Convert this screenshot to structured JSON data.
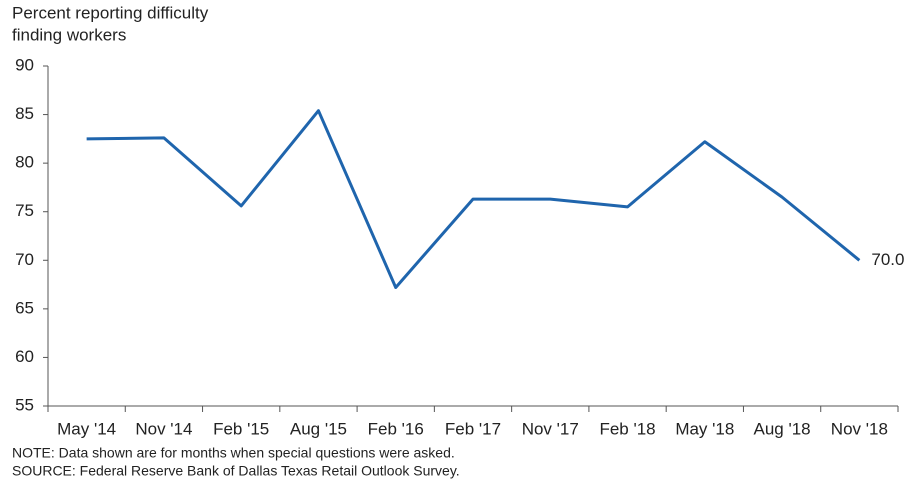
{
  "chart_data": {
    "type": "line",
    "title": [
      "Percent reporting difficulty",
      "finding workers"
    ],
    "categories": [
      "May '14",
      "Nov '14",
      "Feb '15",
      "Aug '15",
      "Feb '16",
      "Feb '17",
      "Nov '17",
      "Feb '18",
      "May '18",
      "Aug '18",
      "Nov '18"
    ],
    "values": [
      82.5,
      82.6,
      75.6,
      85.4,
      67.2,
      76.3,
      76.3,
      75.5,
      82.2,
      76.5,
      70.0
    ],
    "value_labels": [
      null,
      null,
      null,
      null,
      null,
      null,
      null,
      null,
      null,
      null,
      "70.0"
    ],
    "color": "#1f65ad",
    "ylim": [
      55,
      90
    ],
    "yticks": [
      55,
      60,
      65,
      70,
      75,
      80,
      85,
      90
    ],
    "grid": false,
    "note": "NOTE: Data shown are for months when special questions were asked.",
    "source": "SOURCE: Federal Reserve Bank of Dallas Texas Retail Outlook Survey."
  }
}
